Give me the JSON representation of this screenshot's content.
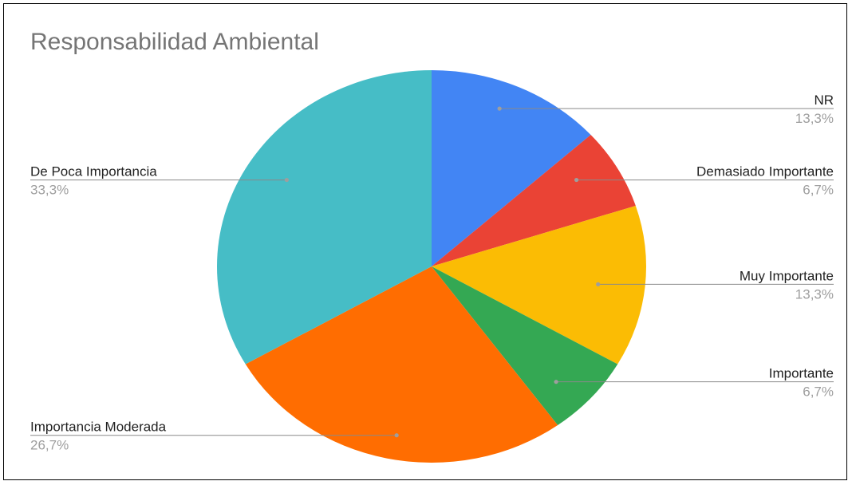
{
  "chart_data": {
    "type": "pie",
    "title": "Responsabilidad Ambiental",
    "slices": [
      {
        "label": "NR",
        "value": 13.3,
        "percent_label": "13,3%",
        "color": "#4285F4"
      },
      {
        "label": "Demasiado Importante",
        "value": 6.7,
        "percent_label": "6,7%",
        "color": "#EA4335"
      },
      {
        "label": "Muy Importante",
        "value": 13.3,
        "percent_label": "13,3%",
        "color": "#FBBC04"
      },
      {
        "label": "Importante",
        "value": 6.7,
        "percent_label": "6,7%",
        "color": "#34A853"
      },
      {
        "label": "Importancia Moderada",
        "value": 26.7,
        "percent_label": "26,7%",
        "color": "#FF6D01"
      },
      {
        "label": "De Poca Importancia",
        "value": 33.3,
        "percent_label": "33,3%",
        "color": "#46BDC6"
      }
    ],
    "start_angle": "top",
    "direction": "clockwise",
    "legend": "callout-labels"
  }
}
